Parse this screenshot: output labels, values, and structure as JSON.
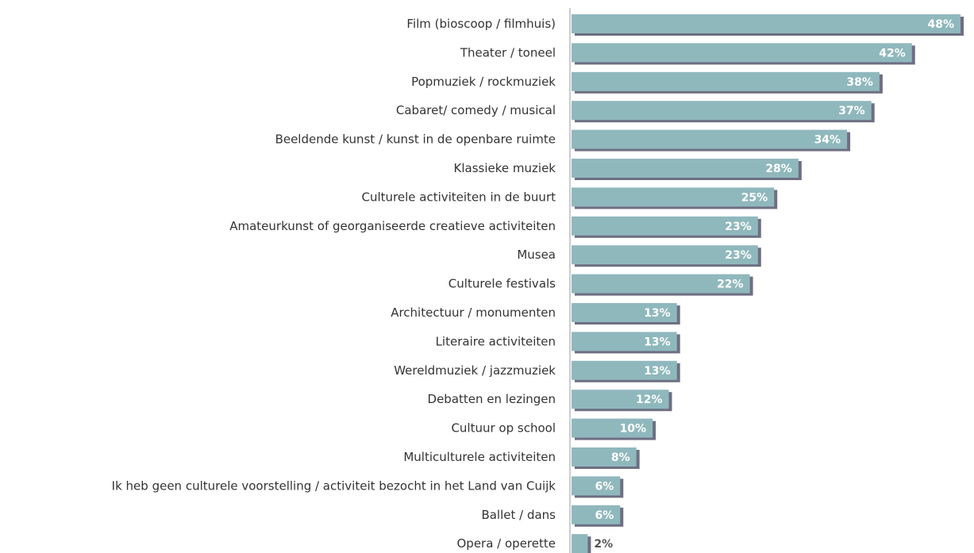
{
  "chart_data": {
    "type": "bar",
    "orientation": "horizontal",
    "categories": [
      "Film (bioscoop / filmhuis)",
      "Theater / toneel",
      "Popmuziek / rockmuziek",
      "Cabaret/ comedy / musical",
      "Beeldende kunst / kunst in de openbare ruimte",
      "Klassieke muziek",
      "Culturele activiteiten in de buurt",
      "Amateurkunst of georganiseerde creatieve activiteiten",
      "Musea",
      "Culturele festivals",
      "Architectuur / monumenten",
      "Literaire activiteiten",
      "Wereldmuziek / jazzmuziek",
      "Debatten en lezingen",
      "Cultuur op school",
      "Multiculturele activiteiten",
      "Ik heb geen culturele voorstelling / activiteit bezocht in het Land van Cuijk",
      "Ballet / dans",
      "Opera / operette"
    ],
    "values": [
      48,
      42,
      38,
      37,
      34,
      28,
      25,
      23,
      23,
      22,
      13,
      13,
      13,
      12,
      10,
      8,
      6,
      6,
      2
    ],
    "value_labels": [
      "48%",
      "42%",
      "38%",
      "37%",
      "34%",
      "28%",
      "25%",
      "23%",
      "23%",
      "22%",
      "13%",
      "13%",
      "13%",
      "12%",
      "10%",
      "8%",
      "6%",
      "6%",
      "2%"
    ],
    "xlim": [
      0,
      48
    ],
    "grid": false,
    "bar_color": "#8fb8bd",
    "shadow_color": "#6e6f82",
    "value_label_color": "#ffffff",
    "value_label_outside_color": "#555555",
    "axis_color": "#cccccc"
  }
}
